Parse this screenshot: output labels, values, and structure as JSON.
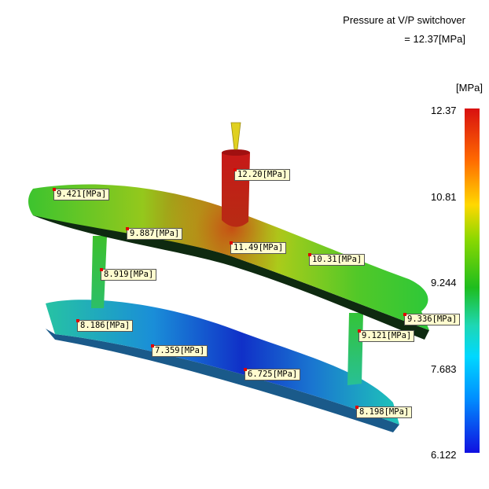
{
  "header": {
    "line1": "Pressure at V/P switchover",
    "line2": "= 12.37[MPa]"
  },
  "scale": {
    "unit": "[MPa]",
    "ticks": [
      "12.37",
      "10.81",
      "9.244",
      "7.683",
      "6.122"
    ],
    "max": 12.37,
    "min": 6.122
  },
  "labels": [
    {
      "id": "l1",
      "text": "12.20[MPa]"
    },
    {
      "id": "l2",
      "text": "9.421[MPa]"
    },
    {
      "id": "l3",
      "text": "9.887[MPa]"
    },
    {
      "id": "l4",
      "text": "11.49[MPa]"
    },
    {
      "id": "l5",
      "text": "10.31[MPa]"
    },
    {
      "id": "l6",
      "text": "8.919[MPa]"
    },
    {
      "id": "l7",
      "text": "9.336[MPa]"
    },
    {
      "id": "l8",
      "text": "8.186[MPa]"
    },
    {
      "id": "l9",
      "text": "9.121[MPa]"
    },
    {
      "id": "l10",
      "text": "7.359[MPa]"
    },
    {
      "id": "l11",
      "text": "6.725[MPa]"
    },
    {
      "id": "l12",
      "text": "8.198[MPa]"
    }
  ]
}
